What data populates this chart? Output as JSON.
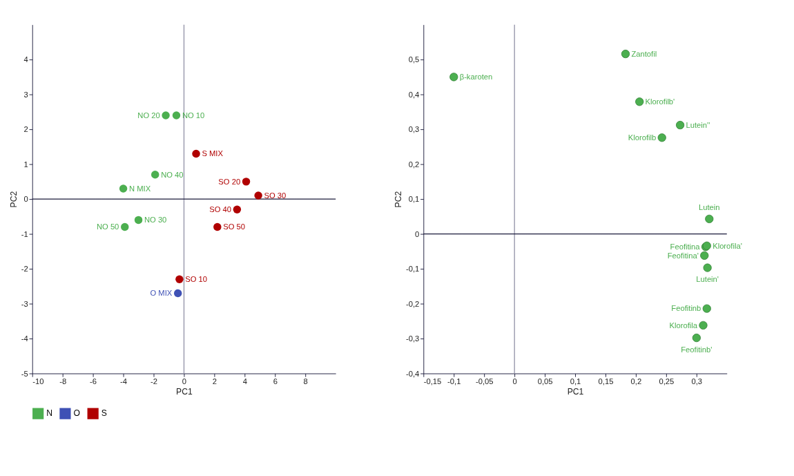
{
  "chart_data": [
    {
      "type": "scatter",
      "xlabel": "PC1",
      "ylabel": "PC2",
      "marker": "circle",
      "legend": "bottom",
      "grid": false,
      "xlim": [
        -10,
        10
      ],
      "ylim": [
        -5,
        5
      ],
      "xticks": [
        -10,
        -8,
        -6,
        -4,
        -2,
        0,
        2,
        4,
        6,
        8
      ],
      "yticks": [
        -5,
        -4,
        -3,
        -2,
        -1,
        0,
        1,
        2,
        3,
        4
      ],
      "ref_lines": [
        {
          "axis": "x",
          "value": 0,
          "color": "#8a8aa0"
        },
        {
          "axis": "y",
          "value": 0,
          "color": "#1a1a3a"
        }
      ],
      "series": [
        {
          "name": "N",
          "color": "#4caf50",
          "x": [
            -1.2,
            -0.5,
            -1.9,
            -4.0,
            -3.0,
            -3.9
          ],
          "values": [
            2.4,
            2.4,
            0.7,
            0.3,
            -0.6,
            -0.8
          ]
        },
        {
          "name": "O",
          "color": "#3f51b5",
          "x": [
            -0.4
          ],
          "values": [
            -2.7
          ]
        },
        {
          "name": "S",
          "color": "#b00000",
          "x": [
            0.8,
            4.1,
            4.9,
            3.5,
            2.2,
            -0.3
          ],
          "values": [
            1.3,
            0.5,
            0.1,
            -0.3,
            -0.8,
            -2.3
          ]
        }
      ],
      "annotations": [
        {
          "text": "NO 20",
          "x": -1.2,
          "y": 2.4
        },
        {
          "text": "NO 10",
          "x": -0.5,
          "y": 2.4
        },
        {
          "text": "NO 40",
          "x": -1.9,
          "y": 0.7
        },
        {
          "text": "N MIX",
          "x": -4.0,
          "y": 0.3
        },
        {
          "text": "NO 30",
          "x": -3.0,
          "y": -0.6
        },
        {
          "text": "NO 50",
          "x": -3.9,
          "y": -0.8
        },
        {
          "text": "S MIX",
          "x": 0.8,
          "y": 1.3
        },
        {
          "text": "SO 20",
          "x": 4.1,
          "y": 0.5
        },
        {
          "text": "SO 30",
          "x": 4.9,
          "y": 0.1
        },
        {
          "text": "SO 40",
          "x": 3.5,
          "y": -0.3
        },
        {
          "text": "SO 50",
          "x": 2.2,
          "y": -0.8
        },
        {
          "text": "SO 10",
          "x": -0.3,
          "y": -2.3
        },
        {
          "text": "O MIX",
          "x": -0.4,
          "y": -2.7
        }
      ]
    },
    {
      "type": "scatter",
      "xlabel": "PC1",
      "ylabel": "PC2",
      "marker": "circle",
      "grid": false,
      "xlim": [
        -0.15,
        0.35
      ],
      "ylim": [
        -0.4,
        0.6
      ],
      "xticks": [
        {
          "value": -0.15,
          "label": "-0,15"
        },
        {
          "value": -0.1,
          "label": "-0,1"
        },
        {
          "value": -0.05,
          "label": "-0,05"
        },
        0,
        {
          "value": 0.05,
          "label": "0,05"
        },
        {
          "value": 0.1,
          "label": "0,1"
        },
        {
          "value": 0.15,
          "label": "0,15"
        },
        {
          "value": 0.2,
          "label": "0,2"
        },
        {
          "value": 0.25,
          "label": "0,25"
        },
        {
          "value": 0.3,
          "label": "0,3"
        }
      ],
      "yticks": [
        {
          "value": -0.4,
          "label": "-0,4"
        },
        {
          "value": -0.3,
          "label": "-0,3"
        },
        {
          "value": -0.2,
          "label": "-0,2"
        },
        {
          "value": -0.1,
          "label": "-0,1"
        },
        0,
        {
          "value": 0.1,
          "label": "0,1"
        },
        {
          "value": 0.2,
          "label": "0,2"
        },
        {
          "value": 0.3,
          "label": "0,3"
        },
        {
          "value": 0.4,
          "label": "0,4"
        },
        {
          "value": 0.5,
          "label": "0,5"
        }
      ],
      "ref_lines": [
        {
          "axis": "x",
          "value": 0,
          "color": "#8a8aa0"
        },
        {
          "axis": "y",
          "value": 0,
          "color": "#1a1a3a"
        }
      ],
      "series": [
        {
          "color": "#4caf50",
          "x": [
            -0.1,
            0.183,
            0.206,
            0.273,
            0.243,
            0.321,
            0.315,
            0.317,
            0.313,
            0.318,
            0.317,
            0.311,
            0.3
          ],
          "values": [
            0.45,
            0.516,
            0.379,
            0.312,
            0.276,
            0.043,
            -0.037,
            -0.034,
            -0.062,
            -0.097,
            -0.214,
            -0.262,
            -0.298
          ]
        }
      ],
      "annotations": [
        {
          "text": "β-karoten",
          "x": -0.1,
          "y": 0.45
        },
        {
          "text": "Zantofil",
          "x": 0.183,
          "y": 0.516
        },
        {
          "text": "Klorofilb'",
          "x": 0.206,
          "y": 0.379
        },
        {
          "text": "Lutein''",
          "x": 0.273,
          "y": 0.312
        },
        {
          "text": "Klorofilb",
          "x": 0.243,
          "y": 0.276
        },
        {
          "text": "Lutein",
          "x": 0.321,
          "y": 0.043
        },
        {
          "text": "Feofitina",
          "x": 0.315,
          "y": -0.037
        },
        {
          "text": "Klorofila'",
          "x": 0.317,
          "y": -0.034
        },
        {
          "text": "Feofitina'",
          "x": 0.313,
          "y": -0.062
        },
        {
          "text": "Lutein'",
          "x": 0.318,
          "y": -0.097
        },
        {
          "text": "Feofitinb",
          "x": 0.317,
          "y": -0.214
        },
        {
          "text": "Klorofila",
          "x": 0.311,
          "y": -0.262
        },
        {
          "text": "Feofitinb'",
          "x": 0.3,
          "y": -0.298
        }
      ]
    }
  ]
}
